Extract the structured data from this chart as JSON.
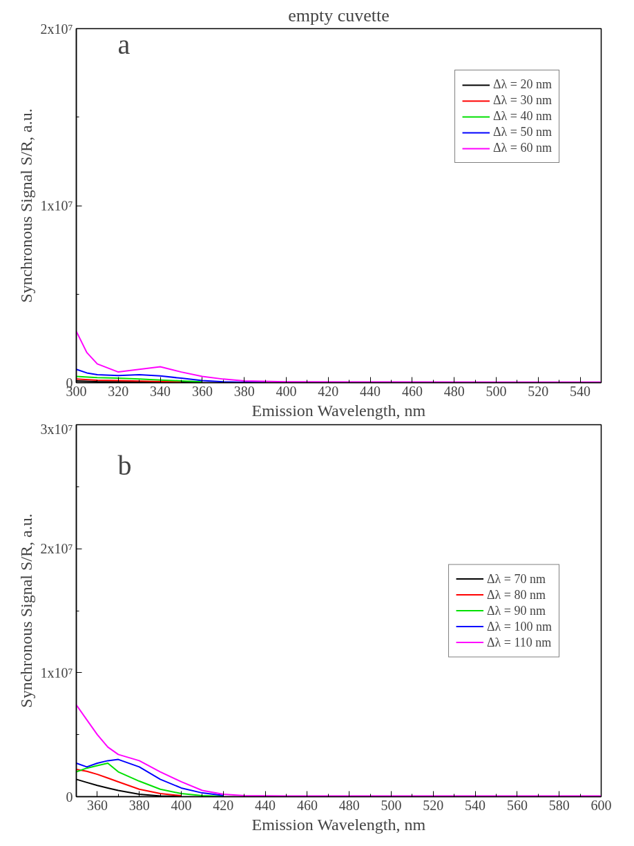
{
  "chart_data": [
    {
      "type": "line",
      "title": "empty cuvette",
      "xlabel": "Emission Wavelength, nm",
      "ylabel": "Synchronous Signal S/R, a.u.",
      "x": [
        300,
        305,
        310,
        320,
        330,
        340,
        350,
        360,
        370,
        380,
        400,
        450,
        500,
        550
      ],
      "series": [
        {
          "name": "Δλ = 20 nm",
          "color": "#000000",
          "x": [
            300,
            310,
            320,
            330,
            340,
            350,
            360
          ],
          "values": [
            100000,
            60000,
            50000,
            40000,
            30000,
            20000,
            10000
          ]
        },
        {
          "name": "Δλ = 30 nm",
          "color": "#ff0000",
          "x": [
            300,
            310,
            320,
            330,
            340,
            350
          ],
          "values": [
            200000,
            140000,
            120000,
            90000,
            60000,
            40000
          ]
        },
        {
          "name": "Δλ = 40 nm",
          "color": "#00e000",
          "x": [
            300,
            310,
            320,
            330,
            340,
            350,
            360
          ],
          "values": [
            350000,
            280000,
            250000,
            200000,
            150000,
            100000,
            50000
          ]
        },
        {
          "name": "Δλ = 50 nm",
          "color": "#0000ff",
          "x": [
            300,
            305,
            310,
            320,
            330,
            340,
            350,
            360,
            370,
            380,
            390
          ],
          "values": [
            750000,
            550000,
            450000,
            400000,
            450000,
            380000,
            250000,
            120000,
            50000,
            20000,
            10000
          ]
        },
        {
          "name": "Δλ = 60 nm",
          "color": "#ff00ff",
          "values": [
            2900000,
            1700000,
            1060000,
            600000,
            750000,
            900000,
            600000,
            350000,
            200000,
            100000,
            50000,
            40000,
            30000,
            30000
          ]
        }
      ],
      "xlim": [
        300,
        550
      ],
      "xticks": [
        300,
        320,
        340,
        360,
        380,
        400,
        420,
        440,
        460,
        480,
        500,
        520,
        540
      ],
      "ylim": [
        0,
        20000000
      ],
      "yticks": [
        0,
        {
          "value": 10000000,
          "label": "1x10⁷"
        },
        {
          "value": 20000000,
          "label": "2x10⁷"
        }
      ],
      "annotations": [
        "a"
      ],
      "legend": "top right",
      "grid": false,
      "line_style": "solid",
      "marker": "none"
    },
    {
      "type": "line",
      "xlabel": "Emission Wavelength, nm",
      "ylabel": "Synchronous Signal S/R, a.u.",
      "x": [
        350,
        355,
        360,
        365,
        370,
        380,
        390,
        400,
        410,
        420,
        430,
        450,
        500,
        550,
        600
      ],
      "series": [
        {
          "name": "Δλ = 70 nm",
          "color": "#000000",
          "x": [
            350,
            355,
            360,
            365,
            370,
            380,
            390,
            400
          ],
          "values": [
            1400000,
            1150000,
            900000,
            700000,
            500000,
            200000,
            60000,
            20000
          ]
        },
        {
          "name": "Δλ = 80 nm",
          "color": "#ff0000",
          "x": [
            350,
            355,
            360,
            365,
            370,
            380,
            390,
            400
          ],
          "values": [
            2200000,
            2050000,
            1800000,
            1500000,
            1200000,
            600000,
            250000,
            80000
          ]
        },
        {
          "name": "Δλ = 90 nm",
          "color": "#00e000",
          "x": [
            350,
            355,
            360,
            365,
            370,
            380,
            390,
            400,
            410,
            420
          ],
          "values": [
            2000000,
            2300000,
            2500000,
            2700000,
            2000000,
            1250000,
            600000,
            250000,
            80000,
            30000
          ]
        },
        {
          "name": "Δλ = 100 nm",
          "color": "#0000ff",
          "x": [
            350,
            355,
            360,
            365,
            370,
            380,
            390,
            400,
            410,
            420
          ],
          "values": [
            2700000,
            2400000,
            2700000,
            2900000,
            3000000,
            2400000,
            1400000,
            700000,
            300000,
            100000
          ]
        },
        {
          "name": "Δλ = 110 nm",
          "color": "#ff00ff",
          "values": [
            7400000,
            6200000,
            5000000,
            4000000,
            3400000,
            2900000,
            2000000,
            1200000,
            500000,
            200000,
            80000,
            60000,
            60000,
            60000,
            60000
          ]
        }
      ],
      "xlim": [
        350,
        600
      ],
      "xticks": [
        360,
        380,
        400,
        420,
        440,
        460,
        480,
        500,
        520,
        540,
        560,
        580,
        600
      ],
      "ylim": [
        0,
        30000000
      ],
      "yticks": [
        0,
        {
          "value": 10000000,
          "label": "1x10⁷"
        },
        {
          "value": 20000000,
          "label": "2x10⁷"
        },
        {
          "value": 30000000,
          "label": "3x10⁷"
        }
      ],
      "annotations": [
        "b"
      ],
      "legend": "right",
      "grid": false,
      "line_style": "solid",
      "marker": "none"
    }
  ]
}
